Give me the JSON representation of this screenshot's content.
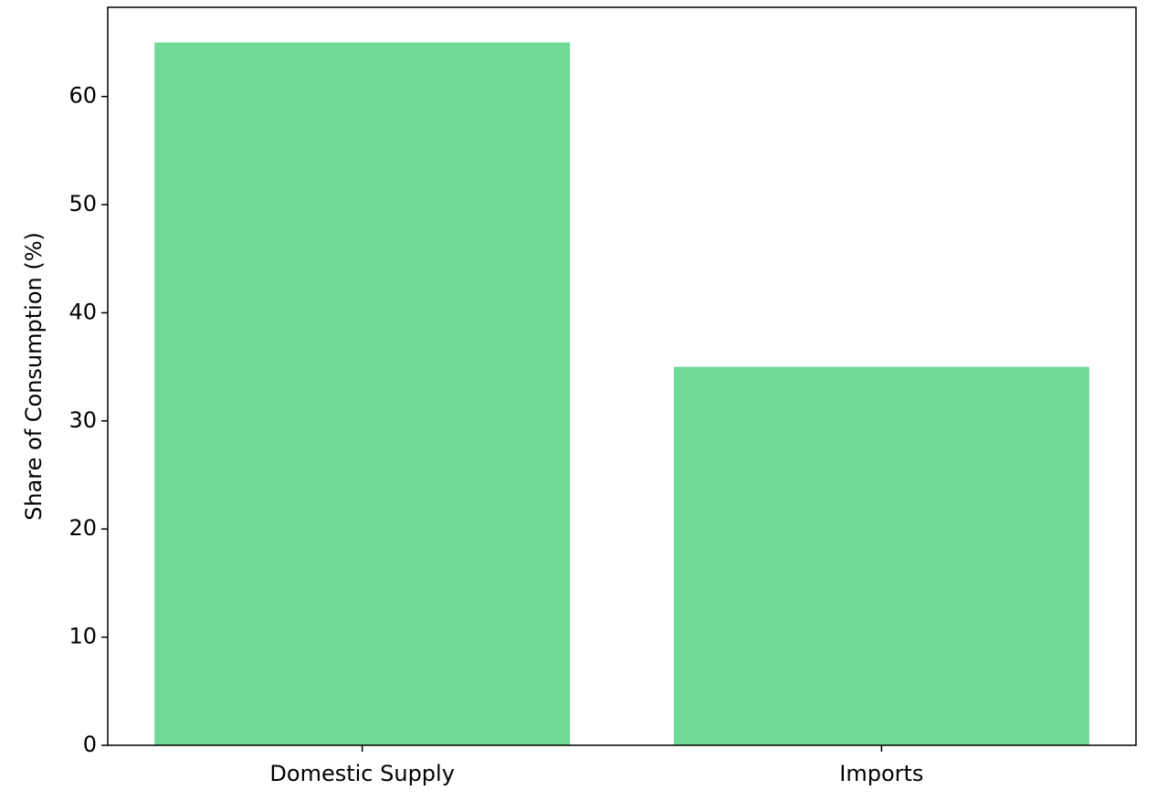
{
  "chart_data": {
    "type": "bar",
    "y_label": "Share of Consumption (%)",
    "categories": [
      "Domestic Supply",
      "Imports"
    ],
    "values": [
      65,
      35
    ],
    "color": "#70d997",
    "ylim": [
      0,
      68.25
    ],
    "yticks": [
      0,
      10,
      20,
      30,
      40,
      50,
      60
    ],
    "grid": false
  }
}
